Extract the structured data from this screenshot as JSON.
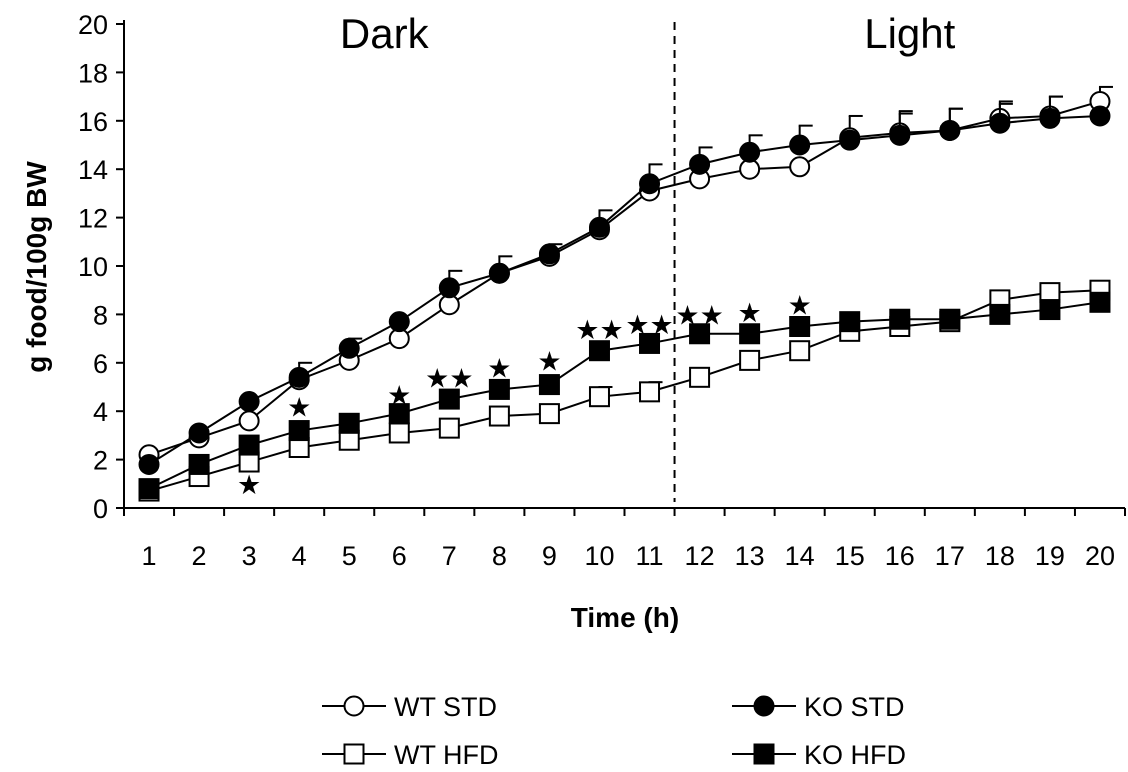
{
  "chart_data": {
    "type": "line",
    "xlabel": "Time (h)",
    "ylabel": "g food/100g BW",
    "x": [
      1,
      2,
      3,
      4,
      5,
      6,
      7,
      8,
      9,
      10,
      11,
      12,
      13,
      14,
      15,
      16,
      17,
      18,
      19,
      20
    ],
    "xlim": [
      0.5,
      20.5
    ],
    "ylim": [
      0,
      20
    ],
    "yticks": [
      0,
      2,
      4,
      6,
      8,
      10,
      12,
      14,
      16,
      18,
      20
    ],
    "divider": {
      "x": 11.5,
      "style": "dashed"
    },
    "regions": [
      {
        "label": "Dark",
        "x": 5.7
      },
      {
        "label": "Light",
        "x": 16.2
      }
    ],
    "series": [
      {
        "name": "WT STD",
        "marker": "circle",
        "fill": "open",
        "values": [
          2.2,
          2.9,
          3.6,
          5.3,
          6.1,
          7.0,
          8.4,
          9.7,
          10.4,
          11.5,
          13.1,
          13.6,
          14.0,
          14.1,
          15.3,
          15.5,
          15.6,
          16.1,
          16.2,
          16.8
        ],
        "errors": [
          0,
          0,
          0,
          0,
          0,
          0,
          0,
          0,
          0,
          0,
          0,
          0,
          0,
          0,
          0.9,
          0.9,
          0.9,
          0.7,
          0.8,
          0.6
        ]
      },
      {
        "name": "KO STD",
        "marker": "circle",
        "fill": "filled",
        "values": [
          1.8,
          3.1,
          4.4,
          5.4,
          6.6,
          7.7,
          9.1,
          9.7,
          10.5,
          11.6,
          13.4,
          14.2,
          14.7,
          15.0,
          15.2,
          15.4,
          15.6,
          15.9,
          16.1,
          16.2
        ],
        "errors": [
          0,
          0,
          0,
          0.6,
          0.4,
          0,
          0.7,
          0.7,
          0.4,
          0.7,
          0.8,
          0.7,
          0.7,
          0.8,
          0,
          0.9,
          0.9,
          0.8,
          0.9,
          0
        ]
      },
      {
        "name": "WT HFD",
        "marker": "square",
        "fill": "open",
        "values": [
          0.7,
          1.3,
          1.9,
          2.5,
          2.8,
          3.1,
          3.3,
          3.8,
          3.9,
          4.6,
          4.8,
          5.4,
          6.1,
          6.5,
          7.3,
          7.5,
          7.7,
          8.6,
          8.9,
          9.0
        ],
        "errors": [
          0,
          0,
          0,
          0,
          0,
          0,
          0,
          0,
          0,
          0.4,
          0.4,
          0,
          0,
          0,
          0,
          0,
          0,
          0,
          0,
          0
        ]
      },
      {
        "name": "KO HFD",
        "marker": "square",
        "fill": "filled",
        "values": [
          0.8,
          1.8,
          2.6,
          3.2,
          3.5,
          3.9,
          4.5,
          4.9,
          5.1,
          6.5,
          6.8,
          7.2,
          7.2,
          7.5,
          7.7,
          7.8,
          7.8,
          8.0,
          8.2,
          8.5
        ],
        "errors": [
          0,
          0,
          0,
          0,
          0,
          0,
          0,
          0,
          0,
          0,
          0,
          0,
          0,
          0,
          0,
          0,
          0,
          0,
          0,
          0
        ]
      }
    ],
    "significance": [
      {
        "x": 3,
        "stars": "★",
        "y": 1.0
      },
      {
        "x": 4,
        "stars": "★",
        "y": 4.2
      },
      {
        "x": 6,
        "stars": "★",
        "y": 4.7
      },
      {
        "x": 7,
        "stars": "★★",
        "y": 5.4
      },
      {
        "x": 8,
        "stars": "★",
        "y": 5.8
      },
      {
        "x": 9,
        "stars": "★",
        "y": 6.1
      },
      {
        "x": 10,
        "stars": "★★",
        "y": 7.4
      },
      {
        "x": 11,
        "stars": "★★",
        "y": 7.6
      },
      {
        "x": 12,
        "stars": "★★",
        "y": 8.0
      },
      {
        "x": 13,
        "stars": "★",
        "y": 8.1
      },
      {
        "x": 14,
        "stars": "★",
        "y": 8.4
      }
    ],
    "legend": {
      "position": "bottom"
    }
  }
}
